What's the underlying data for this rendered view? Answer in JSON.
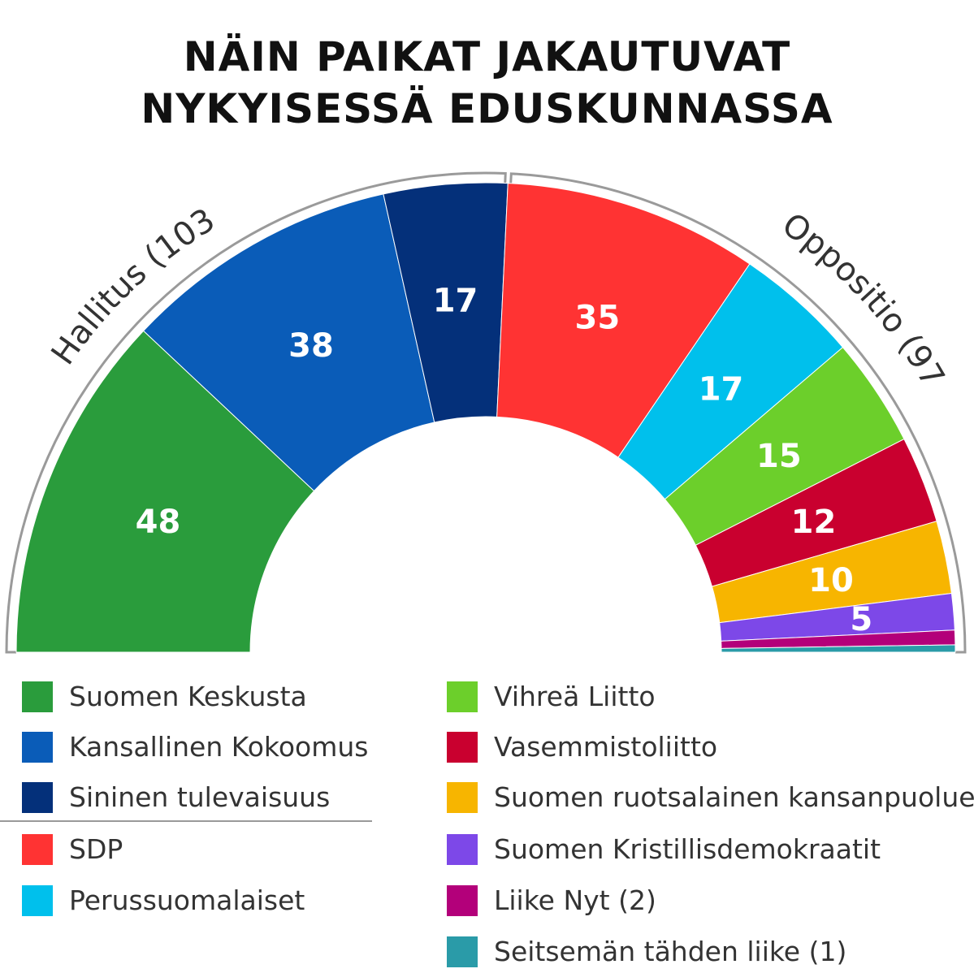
{
  "title_lines": [
    "NÄIN PAIKAT JAKAUTUVAT",
    "NYKYISESSÄ EDUSKUNNASSA"
  ],
  "groups": {
    "government": {
      "label": "Hallitus (103)"
    },
    "opposition": {
      "label": "Oppositio (97)"
    }
  },
  "chart_data": {
    "type": "pie",
    "subtype": "parliament-semicircle",
    "title": "NÄIN PAIKAT JAKAUTUVAT NYKYISESSÄ EDUSKUNNASSA",
    "total": 200,
    "slices": [
      {
        "name": "Suomen Keskusta",
        "value": 48,
        "label": "48",
        "color": "#2a9c3c",
        "group": "government"
      },
      {
        "name": "Kansallinen Kokoomus",
        "value": 38,
        "label": "38",
        "color": "#0a5cb8",
        "group": "government"
      },
      {
        "name": "Sininen tulevaisuus",
        "value": 17,
        "label": "17",
        "color": "#04307a",
        "group": "government"
      },
      {
        "name": "SDP",
        "value": 35,
        "label": "35",
        "color": "#ff3333",
        "group": "opposition"
      },
      {
        "name": "Perussuomalaiset",
        "value": 17,
        "label": "17",
        "color": "#00c0ec",
        "group": "opposition"
      },
      {
        "name": "Vihreä Liitto",
        "value": 15,
        "label": "15",
        "color": "#6ccf2b",
        "group": "opposition"
      },
      {
        "name": "Vasemmistoliitto",
        "value": 12,
        "label": "12",
        "color": "#c9002f",
        "group": "opposition"
      },
      {
        "name": "Suomen ruotsalainen kansanpuolue",
        "value": 10,
        "label": "10",
        "color": "#f7b500",
        "group": "opposition"
      },
      {
        "name": "Suomen Kristillisdemokraatit",
        "value": 5,
        "label": "5",
        "color": "#7d48e8",
        "group": "opposition"
      },
      {
        "name": "Liike Nyt (2)",
        "value": 2,
        "label": "",
        "color": "#b3007a",
        "group": "opposition"
      },
      {
        "name": "Seitsemän tähden liike (1)",
        "value": 1,
        "label": "",
        "color": "#2a9ba8",
        "group": "opposition"
      }
    ],
    "legend": {
      "left_column": [
        0,
        1,
        2,
        3,
        4
      ],
      "right_column": [
        5,
        6,
        7,
        8,
        9,
        10
      ]
    }
  }
}
